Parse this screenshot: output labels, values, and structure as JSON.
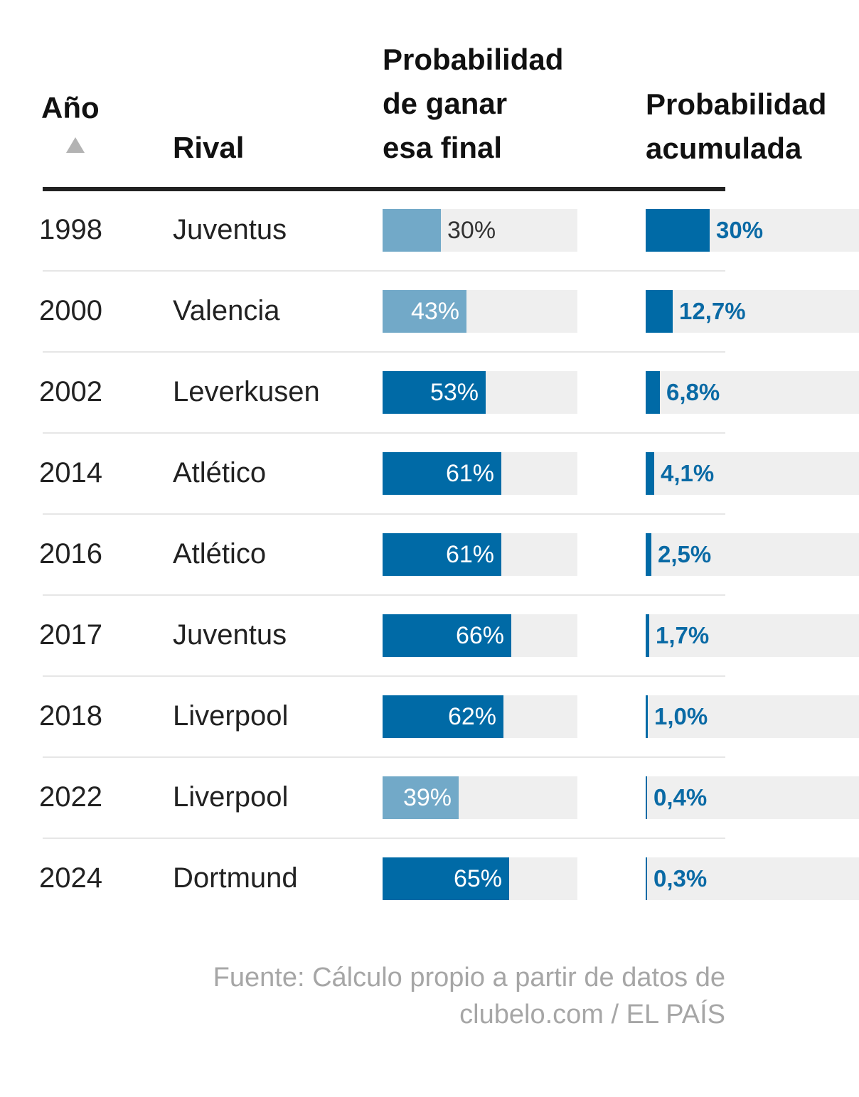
{
  "columns": {
    "year": "Año",
    "rival": "Rival",
    "prob_line1": "Probabilidad",
    "prob_line2": "de ganar",
    "prob_line3": "esa final",
    "acum_line1": "Probabilidad",
    "acum_line2": "acumulada"
  },
  "chart_data": {
    "type": "table",
    "title": "",
    "columns": [
      "Año",
      "Rival",
      "Probabilidad de ganar esa final",
      "Probabilidad acumulada"
    ],
    "rows": [
      {
        "year": "1998",
        "rival": "Juventus",
        "prob": 30,
        "prob_label": "30%",
        "acum": 30,
        "acum_label": "30%"
      },
      {
        "year": "2000",
        "rival": "Valencia",
        "prob": 43,
        "prob_label": "43%",
        "acum": 12.7,
        "acum_label": "12,7%"
      },
      {
        "year": "2002",
        "rival": "Leverkusen",
        "prob": 53,
        "prob_label": "53%",
        "acum": 6.8,
        "acum_label": "6,8%"
      },
      {
        "year": "2014",
        "rival": "Atlético",
        "prob": 61,
        "prob_label": "61%",
        "acum": 4.1,
        "acum_label": "4,1%"
      },
      {
        "year": "2016",
        "rival": "Atlético",
        "prob": 61,
        "prob_label": "61%",
        "acum": 2.5,
        "acum_label": "2,5%"
      },
      {
        "year": "2017",
        "rival": "Juventus",
        "prob": 66,
        "prob_label": "66%",
        "acum": 1.7,
        "acum_label": "1,7%"
      },
      {
        "year": "2018",
        "rival": "Liverpool",
        "prob": 62,
        "prob_label": "62%",
        "acum": 1.0,
        "acum_label": "1,0%"
      },
      {
        "year": "2022",
        "rival": "Liverpool",
        "prob": 39,
        "prob_label": "39%",
        "acum": 0.4,
        "acum_label": "0,4%"
      },
      {
        "year": "2024",
        "rival": "Dortmund",
        "prob": 65,
        "prob_label": "65%",
        "acum": 0.3,
        "acum_label": "0,3%"
      }
    ],
    "prob_range": [
      0,
      100
    ],
    "acum_range": [
      0,
      100
    ]
  },
  "colors": {
    "bar_strong": "#006aa6",
    "bar_light": "#72a9c8",
    "track": "#efefef",
    "acum_text": "#0a6aa5"
  },
  "source": {
    "line1": "Fuente: Cálculo propio a partir de datos de",
    "line2": "clubelo.com / EL PAÍS"
  }
}
